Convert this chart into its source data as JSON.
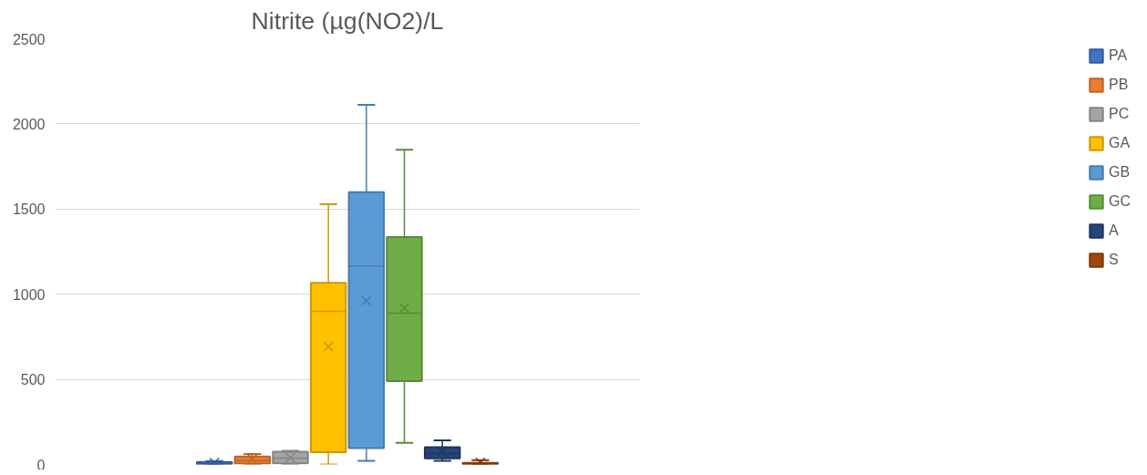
{
  "chart_data": {
    "type": "box",
    "title": "Nitrite (µg(NO2)/L",
    "categories": [
      null
    ],
    "ylim": [
      0,
      2500
    ],
    "yticks": [
      0,
      500,
      1000,
      1500,
      2000,
      2500
    ],
    "grid": "y",
    "legend": "right",
    "series": [
      {
        "name": "PA",
        "color": "#4472c4",
        "boxes": [
          {
            "low": 0,
            "q1": 0,
            "median": 8,
            "q3": 15,
            "high": 20,
            "mean": 11
          }
        ]
      },
      {
        "name": "PB",
        "color": "#ed7d31",
        "boxes": [
          {
            "low": 0,
            "q1": 5,
            "median": 23,
            "q3": 47,
            "high": 62,
            "mean": 33
          }
        ]
      },
      {
        "name": "PC",
        "color": "#a5a5a5",
        "boxes": [
          {
            "low": 0,
            "q1": 7,
            "median": 38,
            "q3": 75,
            "high": 80,
            "mean": 40
          }
        ]
      },
      {
        "name": "GA",
        "color": "#ffc000",
        "boxes": [
          {
            "low": 0,
            "q1": 72,
            "median": 900,
            "q3": 1067,
            "high": 1529,
            "mean": 693
          }
        ]
      },
      {
        "name": "GB",
        "color": "#5b9bd5",
        "boxes": [
          {
            "low": 22,
            "q1": 96,
            "median": 1165,
            "q3": 1599,
            "high": 2112,
            "mean": 962
          }
        ]
      },
      {
        "name": "GC",
        "color": "#70ad47",
        "boxes": [
          {
            "low": 127,
            "q1": 490,
            "median": 888,
            "q3": 1336,
            "high": 1848,
            "mean": 918
          }
        ]
      },
      {
        "name": "A",
        "color": "#264478",
        "boxes": [
          {
            "low": 22,
            "q1": 36,
            "median": 64,
            "q3": 102,
            "high": 142,
            "mean": 78
          }
        ]
      },
      {
        "name": "S",
        "color": "#9e480e",
        "boxes": [
          {
            "low": 0,
            "q1": 0,
            "median": 5,
            "q3": 10,
            "high": 25,
            "mean": 12
          }
        ]
      }
    ]
  }
}
